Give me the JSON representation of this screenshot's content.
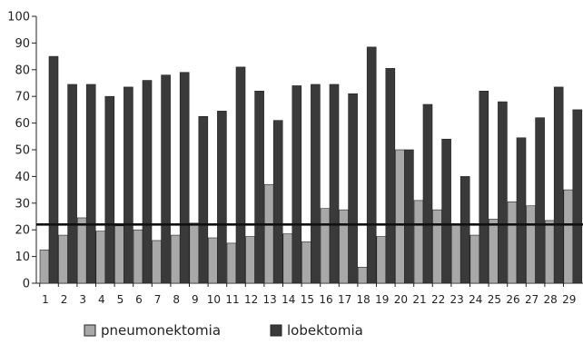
{
  "chart_data": {
    "type": "bar",
    "title": "",
    "xlabel": "",
    "ylabel": "",
    "ylim": [
      0,
      100
    ],
    "yticks": [
      0,
      10,
      20,
      30,
      40,
      50,
      60,
      70,
      80,
      90,
      100
    ],
    "categories": [
      "1",
      "2",
      "3",
      "4",
      "5",
      "6",
      "7",
      "8",
      "9",
      "10",
      "11",
      "12",
      "13",
      "14",
      "15",
      "16",
      "17",
      "18",
      "19",
      "20",
      "21",
      "22",
      "23",
      "24",
      "25",
      "26",
      "27",
      "28",
      "29"
    ],
    "series": [
      {
        "name": "pneumonektomia",
        "color": "#a8a8a8",
        "values": [
          12.5,
          18,
          24.5,
          19.5,
          21.5,
          20,
          16,
          18,
          22.5,
          17,
          15,
          17.5,
          37,
          18.5,
          15.5,
          28,
          27.5,
          6,
          17.5,
          50,
          31,
          27.5,
          22,
          18,
          24,
          30.5,
          29,
          23.5,
          35
        ]
      },
      {
        "name": "lobektomia",
        "color": "#3a3a3a",
        "values": [
          85,
          74.5,
          74.5,
          70,
          73.5,
          76,
          78,
          79,
          62.5,
          64.5,
          81,
          72,
          61,
          74,
          74.5,
          74.5,
          71,
          88.5,
          80.5,
          50,
          67,
          54,
          40,
          72,
          68,
          54.5,
          62,
          73.5,
          65
        ]
      }
    ],
    "reference_line": {
      "value": 22,
      "color": "#111111"
    },
    "grid": false,
    "legend_position": "bottom"
  }
}
